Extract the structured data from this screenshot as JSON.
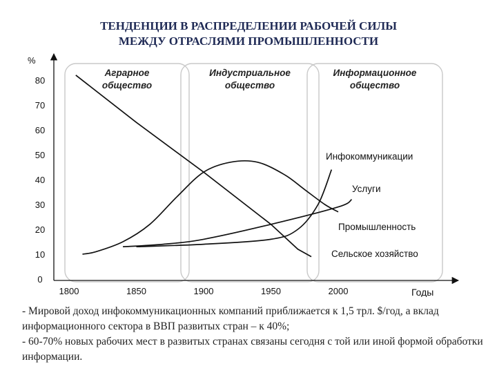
{
  "header": {
    "title_line1": "ТЕНДЕНЦИИ В РАСПРЕДЕЛЕНИИ РАБОЧЕЙ СИЛЫ",
    "title_line2": "МЕЖДУ ОТРАСЛЯМИ ПРОМЫШЛЕННОСТИ"
  },
  "chart_data": {
    "type": "line",
    "ylabel": "%",
    "xlabel": "Годы",
    "xlim": [
      1790,
      2090
    ],
    "ylim": [
      0,
      90
    ],
    "x_ticks": [
      1800,
      1850,
      1900,
      1950,
      2000
    ],
    "y_ticks": [
      0,
      10,
      20,
      30,
      40,
      50,
      60,
      70,
      80
    ],
    "grid": false,
    "eras": [
      {
        "line1": "Аграрное",
        "line2": "общество",
        "from": 1800,
        "to": 1885
      },
      {
        "line1": "Индустриальное",
        "line2": "общество",
        "from": 1885,
        "to": 2000
      },
      {
        "line1": "Информационное",
        "line2": "общество",
        "from": 1965,
        "to": 2100
      }
    ],
    "series": [
      {
        "name": "Сельское хозяйство",
        "x": [
          1805,
          1850,
          1900,
          1950,
          1970,
          1980
        ],
        "y": [
          82,
          63,
          43,
          22,
          12,
          9
        ]
      },
      {
        "name": "Промышленность",
        "x": [
          1810,
          1820,
          1840,
          1860,
          1880,
          1900,
          1920,
          1940,
          1960,
          1975,
          1990,
          2000
        ],
        "y": [
          10,
          11,
          15,
          22,
          33,
          43,
          47,
          47,
          42,
          36,
          30,
          27
        ]
      },
      {
        "name": "Услуги",
        "x": [
          1840,
          1870,
          1900,
          1950,
          2000,
          2010
        ],
        "y": [
          13,
          14,
          16,
          22,
          29,
          32
        ]
      },
      {
        "name": "Инфокоммуникации",
        "x": [
          1850,
          1900,
          1950,
          1970,
          1985,
          1995
        ],
        "y": [
          13,
          14,
          16,
          20,
          30,
          44
        ]
      }
    ]
  },
  "notes": [
    "- Мировой доход инфокоммуникационных компаний приближается к 1,5 трл. $/год, а вклад информационного сектора в ВВП развитых стран – к 40%;",
    "- 60-70% новых рабочих мест в развитых странах связаны сегодня с той или иной формой обработки информации."
  ]
}
